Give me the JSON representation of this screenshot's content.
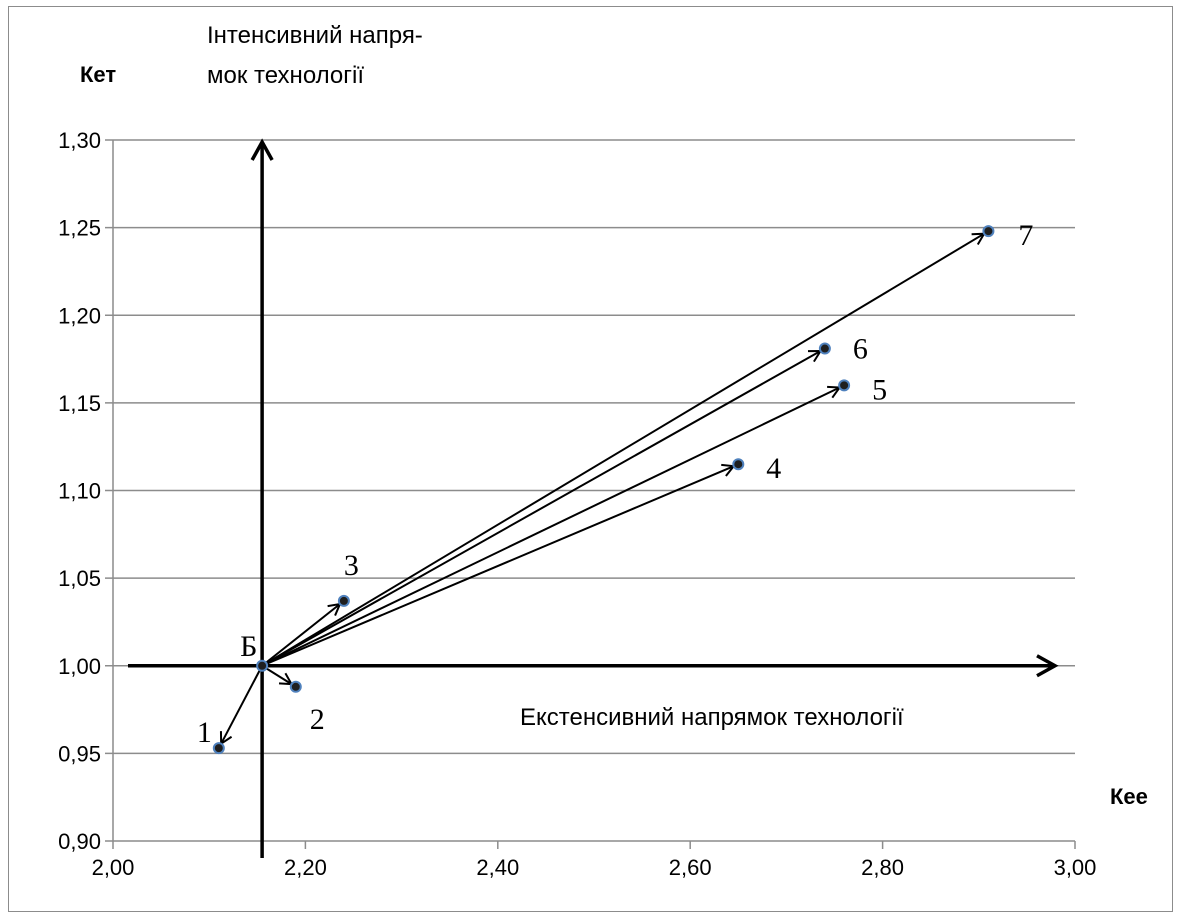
{
  "chart_data": {
    "type": "scatter",
    "title": "",
    "xlabel": "Кее",
    "ylabel": "Кет",
    "xlim": [
      2.0,
      3.0
    ],
    "ylim": [
      0.9,
      1.3
    ],
    "x_ticks": [
      "2,00",
      "2,20",
      "2,40",
      "2,60",
      "2,80",
      "3,00"
    ],
    "y_ticks": [
      "0,90",
      "0,95",
      "1,00",
      "1,05",
      "1,10",
      "1,15",
      "1,20",
      "1,25",
      "1,30"
    ],
    "grid": "horizontal",
    "colors": {
      "point": "#4f81bd",
      "grid": "#8c8c8c",
      "line": "#000000"
    },
    "base_point": {
      "label": "Б",
      "x": 2.155,
      "y": 1.0
    },
    "points": [
      {
        "label": "1",
        "x": 2.11,
        "y": 0.953
      },
      {
        "label": "2",
        "x": 2.19,
        "y": 0.988
      },
      {
        "label": "3",
        "x": 2.24,
        "y": 1.037
      },
      {
        "label": "4",
        "x": 2.65,
        "y": 1.115
      },
      {
        "label": "5",
        "x": 2.76,
        "y": 1.16
      },
      {
        "label": "6",
        "x": 2.74,
        "y": 1.181
      },
      {
        "label": "7",
        "x": 2.91,
        "y": 1.248
      }
    ],
    "annotations": {
      "intensive_line1": "Інтенсивний напря-",
      "intensive_line2": "мок технології",
      "extensive": "Екстенсивний напрямок технології"
    }
  }
}
